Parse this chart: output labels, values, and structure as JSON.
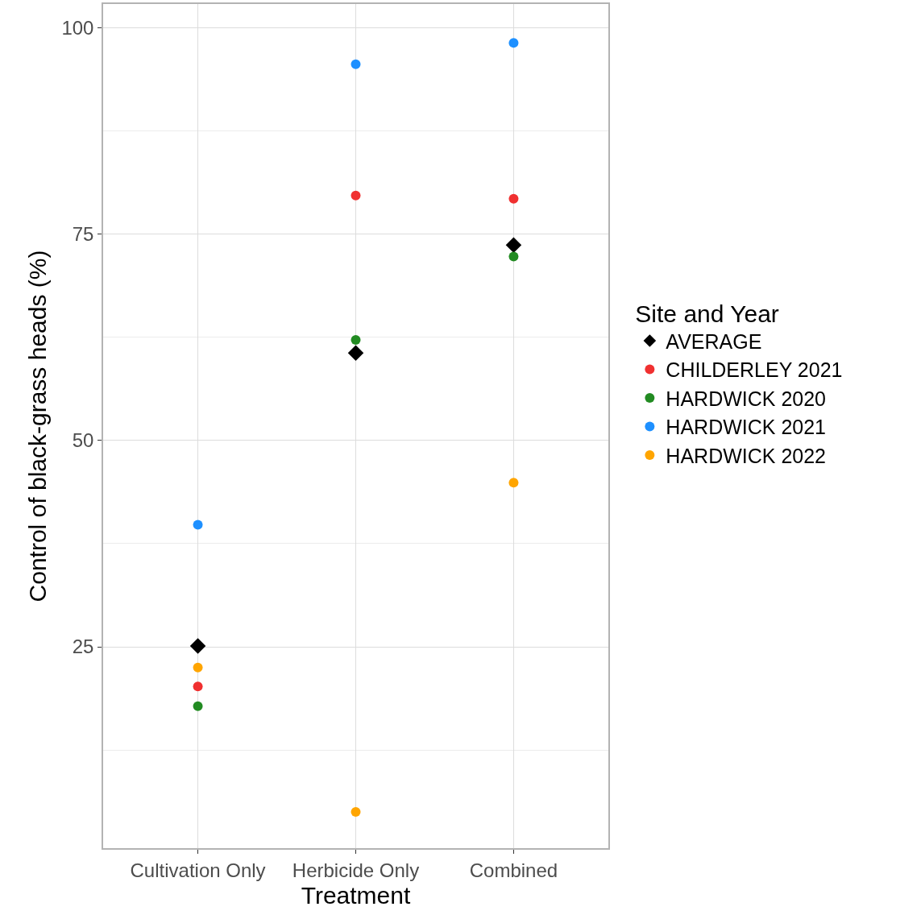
{
  "chart_data": {
    "type": "scatter",
    "xlabel": "Treatment",
    "ylabel": "Control of black-grass heads (%)",
    "legend_title": "Site and Year",
    "categories": [
      "Cultivation Only",
      "Herbicide Only",
      "Combined"
    ],
    "series": [
      {
        "name": "AVERAGE",
        "color": "#000000",
        "marker": "diamond",
        "values": [
          25.1,
          60.6,
          73.7
        ]
      },
      {
        "name": "CHILDERLEY 2021",
        "color": "#f03030",
        "marker": "circle",
        "values": [
          20.2,
          79.7,
          79.3
        ]
      },
      {
        "name": "HARDWICK 2020",
        "color": "#228b22",
        "marker": "circle",
        "values": [
          17.8,
          62.2,
          72.3
        ]
      },
      {
        "name": "HARDWICK 2021",
        "color": "#1e90ff",
        "marker": "circle",
        "values": [
          39.8,
          95.6,
          98.2
        ]
      },
      {
        "name": "HARDWICK 2022",
        "color": "#ffa500",
        "marker": "circle",
        "values": [
          22.5,
          5.0,
          44.9
        ]
      }
    ],
    "ylim": [
      0.6,
      102.9
    ],
    "yticks": [
      25,
      50,
      75,
      100
    ],
    "grid": true,
    "legend": "right"
  }
}
